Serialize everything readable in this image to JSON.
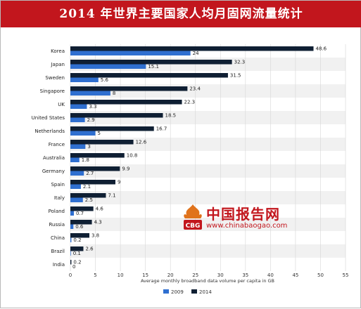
{
  "title": "2014 年世界主要国家人均月固网流量统计",
  "watermark": {
    "cn_text": "中国报告网",
    "url_text": "www.chinabaogao.com",
    "logo_text": "CBG"
  },
  "colors": {
    "title_bg": "#c2161d",
    "series_2009": "#2f6fd0",
    "series_2014": "#0f1f33",
    "band": "#f1f1f1",
    "grid": "#d6d6d6"
  },
  "chart_data": {
    "type": "bar",
    "orientation": "horizontal",
    "categories": [
      "Korea",
      "Japan",
      "Sweden",
      "Singapore",
      "UK",
      "United States",
      "Netherlands",
      "France",
      "Australia",
      "Germany",
      "Spain",
      "Italy",
      "Poland",
      "Russia",
      "China",
      "Brazil",
      "India"
    ],
    "series": [
      {
        "name": "2014",
        "values": [
          48.6,
          32.3,
          31.5,
          23.4,
          22.3,
          18.5,
          16.7,
          12.6,
          10.8,
          9.9,
          9,
          7.1,
          4.6,
          4.3,
          3.8,
          2.6,
          0.2
        ]
      },
      {
        "name": "2009",
        "values": [
          24,
          15.1,
          5.6,
          8,
          3.3,
          2.9,
          5,
          3,
          1.8,
          2.7,
          2.1,
          2.5,
          0.7,
          0.6,
          0.2,
          0.1,
          0
        ]
      }
    ],
    "value_labels": {
      "2014": [
        "48.6",
        "32.3",
        "31.5",
        "23.4",
        "22.3",
        "18.5",
        "16.7",
        "12.6",
        "10.8",
        "9.9",
        "9",
        "7.1",
        "4.6",
        "4.3",
        "3.8",
        "2.6",
        "0.2"
      ],
      "2009": [
        "24",
        "15.1",
        "5.6",
        "8",
        "3.3",
        "2.9",
        "5",
        "3",
        "1.8",
        "2.7",
        "2.1",
        "2.5",
        "0.7",
        "0.6",
        "0.2",
        "0.1",
        "0"
      ]
    },
    "xlim": [
      0,
      55
    ],
    "xticks": [
      "0",
      "5",
      "10",
      "15",
      "20",
      "25",
      "30",
      "35",
      "40",
      "45",
      "50",
      "55"
    ],
    "xtick_values": [
      0,
      5,
      10,
      15,
      20,
      25,
      30,
      35,
      40,
      45,
      50,
      55
    ],
    "xlabel": "Average monthly broadband data volume per capita in GB",
    "ylabel": "",
    "legend": [
      {
        "name": "2009",
        "color": "#2f6fd0"
      },
      {
        "name": "2014",
        "color": "#0f1f33"
      }
    ],
    "legend_position": "bottom-center",
    "grid": true,
    "alternating_bands": true
  }
}
